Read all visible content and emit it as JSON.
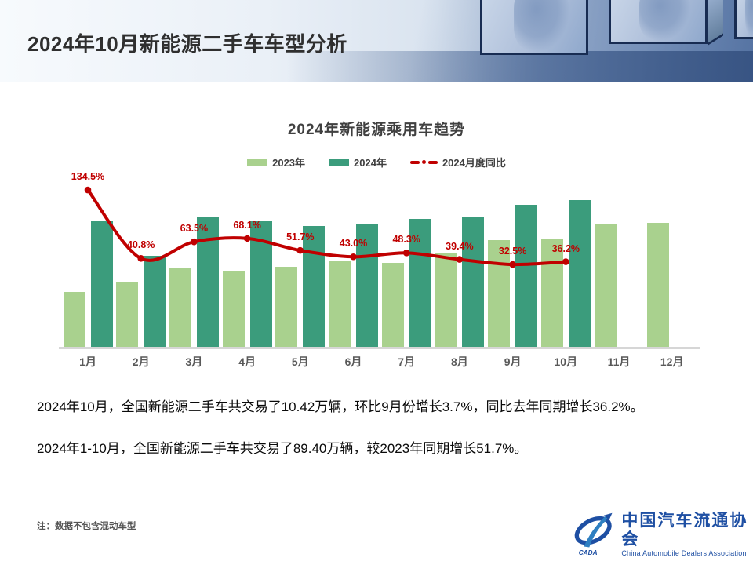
{
  "header": {
    "title": "2024年10月新能源二手车车型分析"
  },
  "chart": {
    "title": "2024年新能源乘用车趋势",
    "legend": [
      {
        "label": "2023年",
        "color": "#a9d18e",
        "icon": "swatch"
      },
      {
        "label": "2024年",
        "color": "#3b9c7c",
        "icon": "swatch"
      },
      {
        "label": "2024月度同比",
        "color": "#c00000",
        "icon": "dash-dot-line"
      }
    ]
  },
  "chart_data": {
    "type": "bar",
    "subtype": "bar+line combo",
    "title": "2024年新能源乘用车趋势",
    "categories": [
      "1月",
      "2月",
      "3月",
      "4月",
      "5月",
      "6月",
      "7月",
      "8月",
      "9月",
      "10月",
      "11月",
      "12月"
    ],
    "xlabel": "",
    "ylabel": "",
    "value_unit": "万辆",
    "grid": false,
    "value_axis_visible": false,
    "legend_position": "top",
    "series": [
      {
        "name": "2023年",
        "type": "bar",
        "color": "#a9d18e",
        "values": [
          3.9,
          4.6,
          5.6,
          5.4,
          5.7,
          6.1,
          6.0,
          6.7,
          7.6,
          7.7,
          8.7,
          8.8
        ]
      },
      {
        "name": "2024年",
        "type": "bar",
        "color": "#3b9c7c",
        "values": [
          9.0,
          6.5,
          9.2,
          9.0,
          8.6,
          8.7,
          9.1,
          9.3,
          10.1,
          10.42,
          null,
          null
        ]
      },
      {
        "name": "2024月度同比",
        "type": "line",
        "color": "#c00000",
        "unit": "%",
        "values": [
          134.5,
          40.8,
          63.5,
          68.1,
          51.7,
          43.0,
          48.3,
          39.4,
          32.5,
          36.2,
          null,
          null
        ]
      }
    ],
    "ylim": [
      0,
      12
    ]
  },
  "body": {
    "paragraph1": "2024年10月，全国新能源二手车共交易了10.42万辆，环比9月份增长3.7%，同比去年同期增长36.2%。",
    "paragraph2": "2024年1-10月，全国新能源二手车共交易了89.40万辆，较2023年同期增长51.7%。"
  },
  "footer": {
    "note": "注：数据不包含混动车型",
    "logo": {
      "badge": "CADA",
      "cn": "中国汽车流通协会",
      "en": "China Automobile Dealers Association",
      "color": "#1e4fa3"
    }
  }
}
